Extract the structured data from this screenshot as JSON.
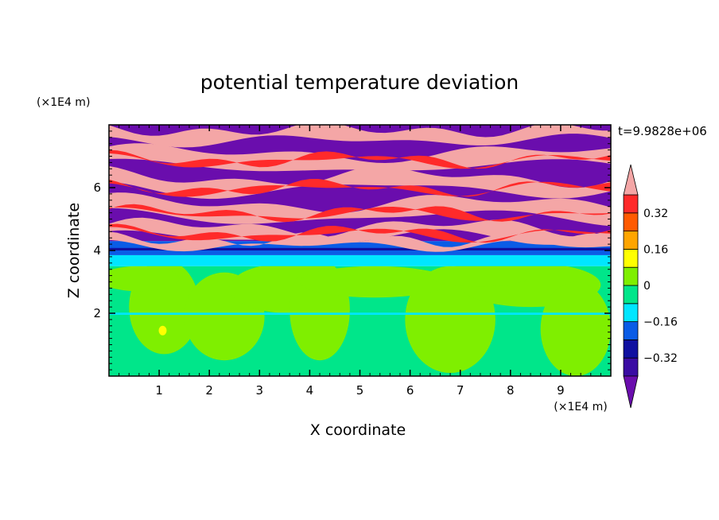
{
  "chart_data": {
    "type": "heatmap",
    "title": "potential temperature deviation",
    "xlabel": "X coordinate",
    "ylabel": "Z coordinate",
    "x_unit": "(×1E4 m)",
    "y_unit": "(×1E4 m)",
    "time_label": "t=9.9828e+06",
    "xlim": [
      0,
      10
    ],
    "ylim": [
      0,
      8
    ],
    "x_ticks": [
      1,
      2,
      3,
      4,
      5,
      6,
      7,
      8,
      9
    ],
    "y_ticks": [
      2,
      4,
      6
    ],
    "colorbar": {
      "levels": [
        -0.4,
        -0.32,
        -0.24,
        -0.16,
        -0.08,
        0,
        0.08,
        0.16,
        0.24,
        0.32,
        0.4
      ],
      "labels": [
        "0.32",
        "0.16",
        "0",
        "−0.16",
        "−0.32"
      ],
      "label_values": [
        0.32,
        0.16,
        0,
        -0.16,
        -0.32
      ],
      "colors_low_to_high": [
        "#6a0dad",
        "#3a0ca3",
        "#1010a0",
        "#0a5ce6",
        "#00e6ff",
        "#00e68a",
        "#7fef00",
        "#ffff00",
        "#ffa500",
        "#ff5a00",
        "#ff2a2a",
        "#f4a6a6"
      ],
      "under_color": "#6a0dad",
      "over_color": "#f4a6a6"
    }
  }
}
